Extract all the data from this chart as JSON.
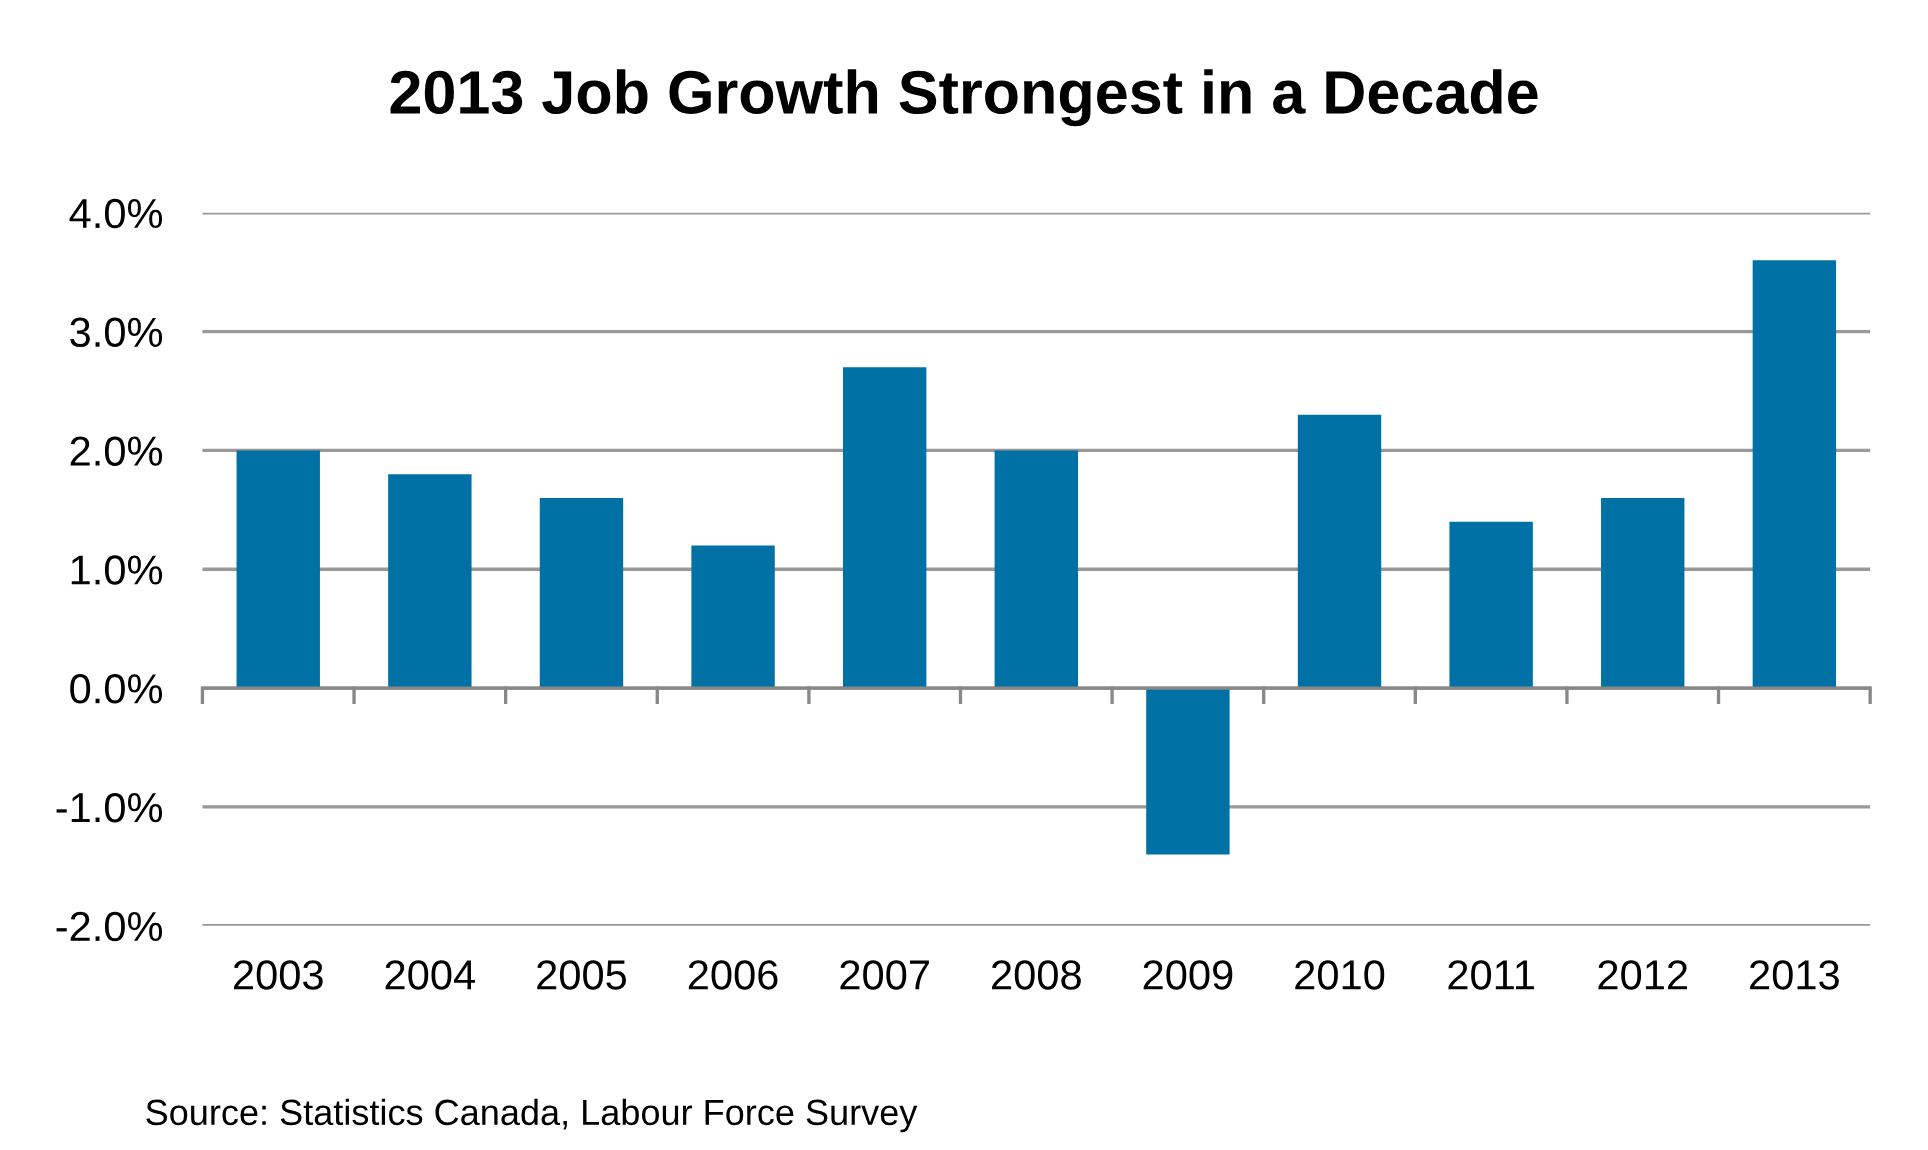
{
  "chart_data": {
    "type": "bar",
    "title": "2013 Job Growth Strongest in a Decade",
    "categories": [
      "2003",
      "2004",
      "2005",
      "2006",
      "2007",
      "2008",
      "2009",
      "2010",
      "2011",
      "2012",
      "2013"
    ],
    "values": [
      2.0,
      1.8,
      1.6,
      1.2,
      2.7,
      2.0,
      -1.4,
      2.3,
      1.4,
      1.6,
      3.6
    ],
    "color": "#0071a4",
    "ylim": [
      -2,
      4
    ],
    "yticks": [
      {
        "value": -2,
        "label": "-2.0%"
      },
      {
        "value": -1,
        "label": "-1.0%"
      },
      {
        "value": 0,
        "label": "0.0%"
      },
      {
        "value": 1,
        "label": "1.0%"
      },
      {
        "value": 2,
        "label": "2.0%"
      },
      {
        "value": 3,
        "label": "3.0%"
      },
      {
        "value": 4,
        "label": "4.0%"
      }
    ],
    "grid": "y",
    "annotations": [
      "Source: Statistics Canada, Labour Force Survey"
    ]
  }
}
